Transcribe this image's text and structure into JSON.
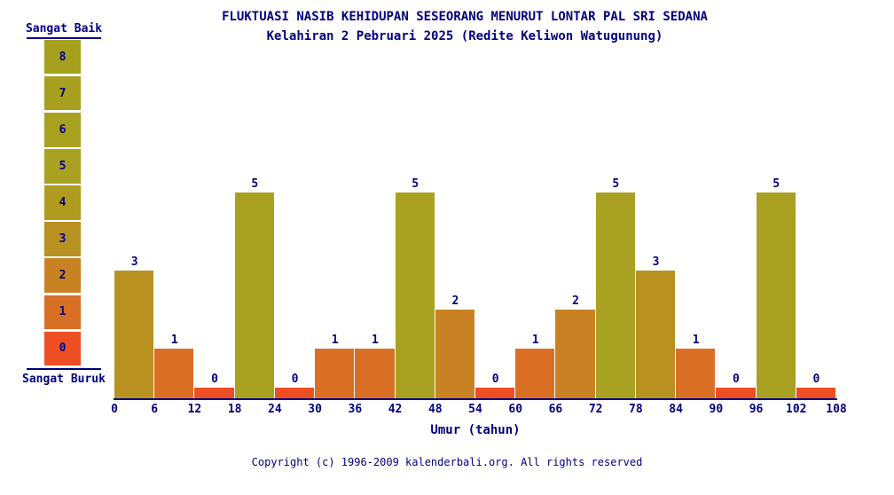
{
  "page": {
    "title": "FLUKTUASI NASIB KEHIDUPAN SESEORANG MENURUT LONTAR PAL SRI SEDANA",
    "subtitle": "Kelahiran 2 Pebruari 2025 (Redite Keliwon Watugunung)"
  },
  "colors": {
    "text": "#000080",
    "axis": "#000080",
    "background": "#ffffff",
    "by_value": {
      "0": "#ee4e24",
      "1": "#d96f25",
      "2": "#c98223",
      "3": "#b89120",
      "4": "#b09a1f",
      "5": "#a9a121",
      "6": "#a8a120",
      "7": "#a7a01f",
      "8": "#a5a01d"
    }
  },
  "legend": {
    "top_label": "Sangat Baik",
    "bottom_label": "Sangat Buruk",
    "levels": [
      8,
      7,
      6,
      5,
      4,
      3,
      2,
      1,
      0
    ]
  },
  "chart_data": {
    "type": "bar",
    "title": "FLUKTUASI NASIB KEHIDUPAN SESEORANG MENURUT LONTAR PAL SRI SEDANA",
    "subtitle": "Kelahiran 2 Pebruari 2025 (Redite Keliwon Watugunung)",
    "xlabel": "Umur (tahun)",
    "ylabel": "",
    "ylim": [
      0,
      8
    ],
    "grid": false,
    "legend_position": "left",
    "bar_value_labels_shown": true,
    "x_ticks": [
      0,
      6,
      12,
      18,
      24,
      30,
      36,
      42,
      48,
      54,
      60,
      66,
      72,
      78,
      84,
      90,
      96,
      102,
      108
    ],
    "categories": [
      "0-6",
      "6-12",
      "12-18",
      "18-24",
      "24-30",
      "30-36",
      "36-42",
      "42-48",
      "48-54",
      "54-60",
      "60-66",
      "66-72",
      "72-78",
      "78-84",
      "84-90",
      "90-96",
      "96-102",
      "102-108"
    ],
    "values": [
      3,
      1,
      0,
      5,
      0,
      1,
      1,
      5,
      2,
      0,
      1,
      2,
      5,
      3,
      1,
      0,
      5,
      0
    ]
  },
  "footer": {
    "copyright": "Copyright (c) 1996-2009 kalenderbali.org. All rights reserved"
  }
}
